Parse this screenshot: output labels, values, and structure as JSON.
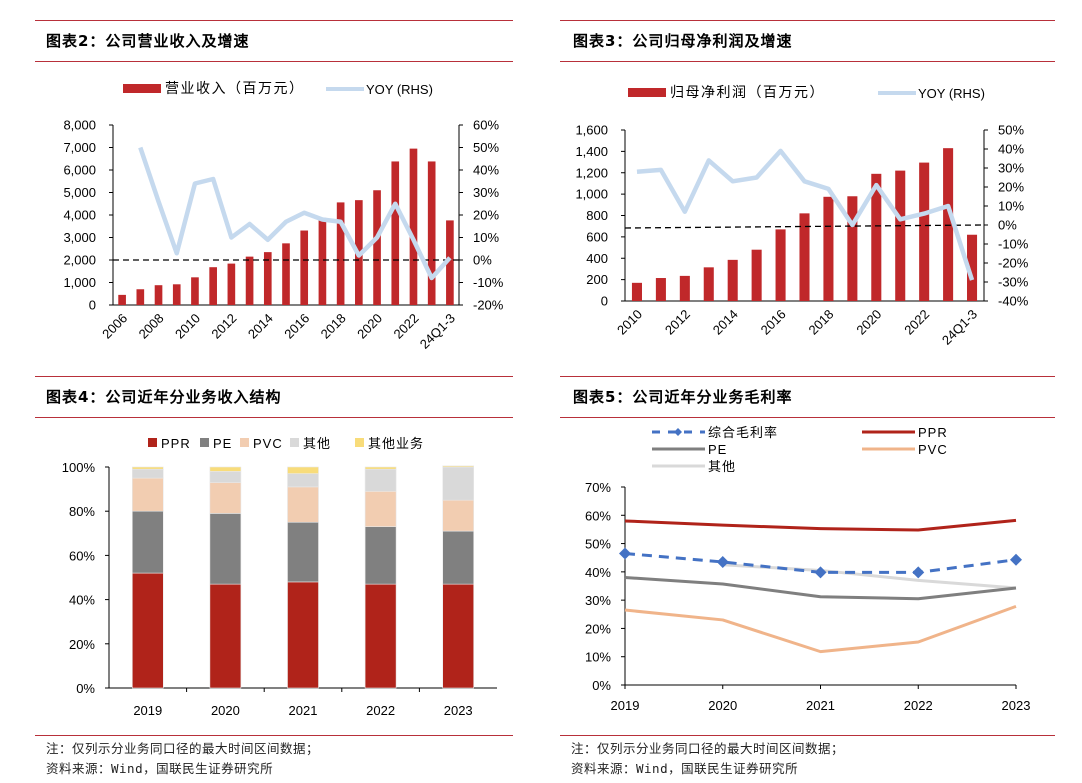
{
  "panels": {
    "p2": {
      "title": "图表2：公司营业收入及增速"
    },
    "p3": {
      "title": "图表3：公司归母净利润及增速"
    },
    "p4": {
      "title": "图表4：公司近年分业务收入结构"
    },
    "p5": {
      "title": "图表5：公司近年分业务毛利率"
    }
  },
  "footnotes": {
    "left": {
      "note": "注：仅列示分业务同口径的最大时间区间数据；",
      "source": "资料来源：Wind，国联民生证券研究所"
    },
    "right": {
      "note": "注：仅列示分业务同口径的最大时间区间数据；",
      "source": "资料来源：Wind，国联民生证券研究所"
    }
  },
  "colors": {
    "bar_red": "#c0282a",
    "yoy_blue": "#c5d9ee",
    "rule_red": "#b8303a",
    "ppr": "#b0231a",
    "pe": "#808080",
    "pvc": "#f2cdb1",
    "other": "#d9d9d9",
    "other_biz": "#f8dc7a",
    "gm_blue": "#4472c4",
    "ppr_line": "#b0231a",
    "pe_line": "#7f7f7f",
    "pvc_line": "#f0b48a",
    "other_line": "#d9d9d9"
  },
  "chart_data": [
    {
      "id": "revenue",
      "type": "bar",
      "title": "图表2：公司营业收入及增速",
      "categories": [
        "2006",
        "2007",
        "2008",
        "2009",
        "2010",
        "2011",
        "2012",
        "2013",
        "2014",
        "2015",
        "2016",
        "2017",
        "2018",
        "2019",
        "2020",
        "2021",
        "2022",
        "2023",
        "24Q1-3"
      ],
      "tick_labels": [
        "2006",
        "2008",
        "2010",
        "2012",
        "2014",
        "2016",
        "2018",
        "2020",
        "2022",
        "24Q1-3"
      ],
      "series": [
        {
          "name": "营业收入（百万元）",
          "type": "bar",
          "axis": "left",
          "values": [
            450,
            700,
            880,
            920,
            1230,
            1680,
            1840,
            2150,
            2350,
            2740,
            3310,
            3870,
            4560,
            4660,
            5100,
            6380,
            6950,
            6380,
            3760
          ]
        },
        {
          "name": "YOY (RHS)",
          "type": "line",
          "axis": "right",
          "values": [
            null,
            50,
            26,
            3,
            34,
            36,
            10,
            16,
            9,
            17,
            21,
            18,
            17,
            2,
            10,
            25,
            9,
            -8,
            1
          ]
        }
      ],
      "ylim": [
        0,
        8000
      ],
      "yticks": [
        "0",
        "1,000",
        "2,000",
        "3,000",
        "4,000",
        "5,000",
        "6,000",
        "7,000",
        "8,000"
      ],
      "y2lim": [
        -20,
        60
      ],
      "y2ticks": [
        "-20%",
        "-10%",
        "0%",
        "10%",
        "20%",
        "30%",
        "40%",
        "50%",
        "60%"
      ],
      "reference_line": {
        "axis": "right",
        "value": 0,
        "style": "dashed"
      },
      "legend": "top"
    },
    {
      "id": "net_profit",
      "type": "bar",
      "title": "图表3：公司归母净利润及增速",
      "categories": [
        "2010",
        "2011",
        "2012",
        "2013",
        "2014",
        "2015",
        "2016",
        "2017",
        "2018",
        "2019",
        "2020",
        "2021",
        "2022",
        "2023",
        "24Q1-3"
      ],
      "tick_labels": [
        "2010",
        "2012",
        "2014",
        "2016",
        "2018",
        "2020",
        "2022",
        "24Q1-3"
      ],
      "series": [
        {
          "name": "归母净利润（百万元）",
          "type": "bar",
          "axis": "left",
          "values": [
            170,
            215,
            235,
            315,
            385,
            480,
            670,
            820,
            975,
            980,
            1190,
            1220,
            1295,
            1430,
            620
          ]
        },
        {
          "name": "YOY (RHS)",
          "type": "line",
          "axis": "right",
          "values": [
            28,
            29,
            7,
            34,
            23,
            25,
            39,
            23,
            19,
            0,
            21,
            3,
            6,
            10,
            -29
          ]
        }
      ],
      "ylim": [
        0,
        1600
      ],
      "yticks": [
        "0",
        "200",
        "400",
        "600",
        "800",
        "1,000",
        "1,200",
        "1,400",
        "1,600"
      ],
      "y2lim": [
        -40,
        50
      ],
      "y2ticks": [
        "-40%",
        "-30%",
        "-20%",
        "-10%",
        "0%",
        "10%",
        "20%",
        "30%",
        "40%",
        "50%"
      ],
      "reference_line": {
        "axis": "right",
        "value": 0,
        "style": "dashed"
      },
      "legend": "top"
    },
    {
      "id": "revenue_structure",
      "type": "bar",
      "stacked": true,
      "title": "图表4：公司近年分业务收入结构",
      "categories": [
        "2019",
        "2020",
        "2021",
        "2022",
        "2023"
      ],
      "series": [
        {
          "name": "PPR",
          "values": [
            52,
            47,
            48,
            47,
            47
          ]
        },
        {
          "name": "PE",
          "values": [
            28,
            32,
            27,
            26,
            24
          ]
        },
        {
          "name": "PVC",
          "values": [
            15,
            14,
            16,
            16,
            14
          ]
        },
        {
          "name": "其他",
          "values": [
            4,
            5,
            6,
            10,
            15
          ]
        },
        {
          "name": "其他业务",
          "values": [
            1,
            2,
            3,
            1,
            0.5
          ]
        }
      ],
      "ylim": [
        0,
        100
      ],
      "yticks": [
        "0%",
        "20%",
        "40%",
        "60%",
        "80%",
        "100%"
      ],
      "legend": "top"
    },
    {
      "id": "gross_margin",
      "type": "line",
      "title": "图表5：公司近年分业务毛利率",
      "categories": [
        "2019",
        "2020",
        "2021",
        "2022",
        "2023"
      ],
      "series": [
        {
          "name": "综合毛利率",
          "style": "dashed-diamond",
          "values": [
            46.5,
            43.5,
            39.8,
            39.8,
            44.3
          ]
        },
        {
          "name": "PPR",
          "values": [
            58,
            56.5,
            55.3,
            54.8,
            58.2
          ]
        },
        {
          "name": "PE",
          "values": [
            38,
            35.7,
            31.2,
            30.5,
            34.3
          ]
        },
        {
          "name": "PVC",
          "values": [
            26.5,
            23,
            11.8,
            15.2,
            27.8
          ]
        },
        {
          "name": "其他",
          "values": [
            null,
            42.5,
            40.5,
            37,
            34.3
          ]
        }
      ],
      "ylim": [
        0,
        70
      ],
      "yticks": [
        "0%",
        "10%",
        "20%",
        "30%",
        "40%",
        "50%",
        "60%",
        "70%"
      ],
      "legend": "top"
    }
  ]
}
